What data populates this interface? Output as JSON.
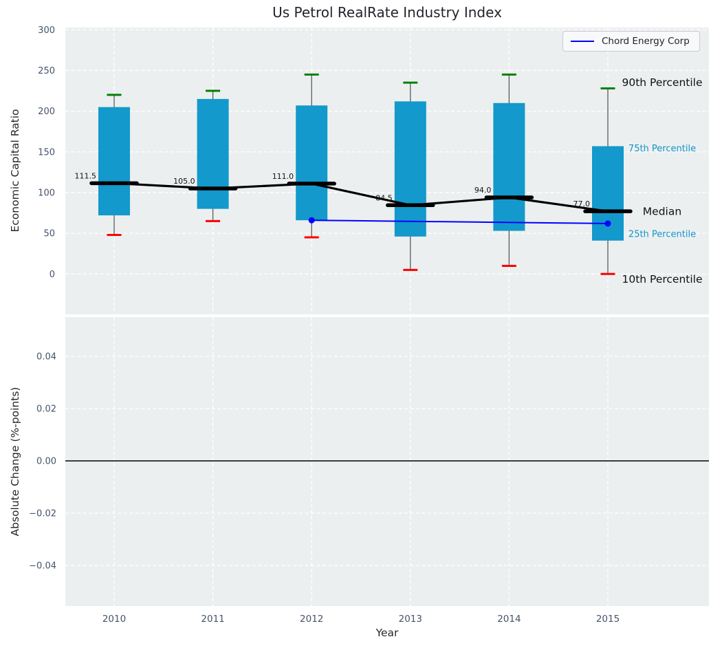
{
  "title": "Us Petrol RealRate Industry Index",
  "xlabel": "Year",
  "legend": {
    "label": "Chord Energy Corp"
  },
  "xtick_labels": [
    "2010",
    "2011",
    "2012",
    "2013",
    "2014",
    "2015"
  ],
  "panels": {
    "top": {
      "ylabel": "Economic Capital Ratio",
      "ytick_labels": [
        "0",
        "50",
        "100",
        "150",
        "200",
        "250",
        "300"
      ],
      "annotations": [
        {
          "text": "90th Percentile",
          "style": "major"
        },
        {
          "text": "75th Percentile",
          "style": "minor"
        },
        {
          "text": "Median",
          "style": "major"
        },
        {
          "text": "25th Percentile",
          "style": "minor"
        },
        {
          "text": "10th Percentile",
          "style": "major"
        }
      ]
    },
    "bottom": {
      "ylabel": "Absolute Change (%-points)",
      "ytick_labels": [
        "0.04",
        "0.02",
        "0.00",
        "−0.02",
        "−0.04"
      ]
    }
  },
  "colors": {
    "box_fill": "#1399cb",
    "p90_cap": "#008000",
    "p10_cap": "#fb0000",
    "median": "#000000",
    "company_line": "#0000ff",
    "annotation_minor": "#1295c9",
    "annotation_major": "#111111",
    "panel_bg": "#eceff0",
    "grid": "#ffffff",
    "tick_text": "#44536a",
    "whisker": "#5a5a5a",
    "zero_line": "#000000"
  },
  "chart_data": [
    {
      "type": "boxplot+line",
      "title": "Us Petrol RealRate Industry Index",
      "xlabel": "Year",
      "ylabel": "Economic Capital Ratio",
      "categories": [
        2010,
        2011,
        2012,
        2013,
        2014,
        2015
      ],
      "ylim": [
        -50,
        303
      ],
      "yticks": [
        0,
        50,
        100,
        150,
        200,
        250,
        300
      ],
      "grid": true,
      "legend_position": "upper right",
      "series": [
        {
          "name": "90th Percentile",
          "values": [
            220,
            225,
            245,
            235,
            245,
            228
          ]
        },
        {
          "name": "75th Percentile",
          "values": [
            205,
            215,
            207,
            212,
            210,
            157
          ]
        },
        {
          "name": "Median",
          "values": [
            111.5,
            105.0,
            111.0,
            84.5,
            94.0,
            77.0
          ]
        },
        {
          "name": "25th Percentile",
          "values": [
            72,
            80,
            66,
            46,
            53,
            41
          ]
        },
        {
          "name": "10th Percentile",
          "values": [
            48,
            65,
            45,
            5,
            10,
            0
          ]
        },
        {
          "name": "Chord Energy Corp",
          "x": [
            2012,
            2015
          ],
          "values": [
            66,
            62
          ]
        }
      ],
      "median_labels": [
        "111.5",
        "105.0",
        "111.0",
        "84.5",
        "94.0",
        "77.0"
      ]
    },
    {
      "type": "line",
      "ylabel": "Absolute Change (%-points)",
      "yticks": [
        0.04,
        0.02,
        0.0,
        -0.02,
        -0.04
      ],
      "ylim": [
        -0.055,
        0.055
      ],
      "grid": true,
      "zero_line": true,
      "series": []
    }
  ]
}
